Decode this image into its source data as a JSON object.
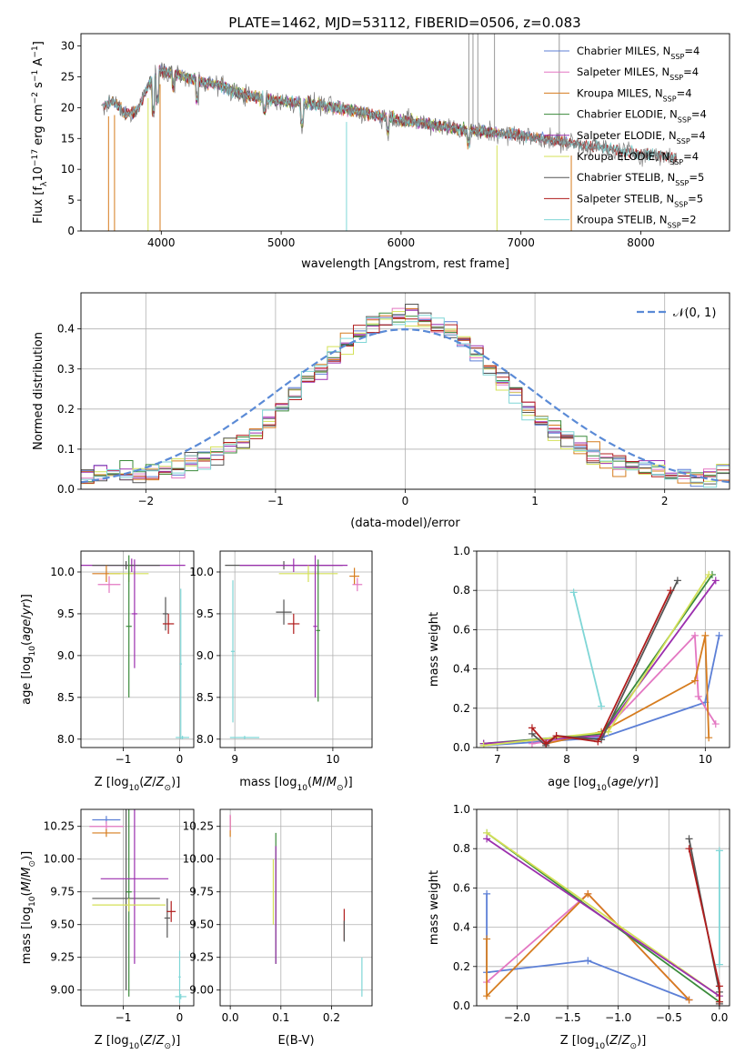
{
  "figure": {
    "title": "PLATE=1462, MJD=53112, FIBERID=0506, z=0.083"
  },
  "chart_data": [
    {
      "id": "spectrum",
      "type": "line",
      "xlabel": "wavelength [Angstrom, rest frame]",
      "ylabel": "Flux [f_λ 10^-17 erg cm^-2 s^-1 A^-1]",
      "xlim": [
        3330,
        8740
      ],
      "ylim": [
        0,
        32
      ],
      "xticks": [
        4000,
        5000,
        6000,
        7000,
        8000
      ],
      "yticks": [
        0,
        5,
        10,
        15,
        20,
        25,
        30
      ],
      "legend": "top-right",
      "data_color": "#7f7f7f",
      "continuum": [
        [
          3500,
          20
        ],
        [
          3600,
          21
        ],
        [
          3700,
          19
        ],
        [
          3800,
          19.5
        ],
        [
          3900,
          24
        ],
        [
          4000,
          26
        ],
        [
          4100,
          25.5
        ],
        [
          4300,
          24.5
        ],
        [
          4500,
          23.5
        ],
        [
          4700,
          22
        ],
        [
          5000,
          21
        ],
        [
          5300,
          20.5
        ],
        [
          5600,
          19.5
        ],
        [
          6000,
          18
        ],
        [
          6500,
          16.5
        ],
        [
          7000,
          15.5
        ],
        [
          7500,
          14
        ],
        [
          8000,
          12.5
        ],
        [
          8300,
          12
        ]
      ],
      "series": [
        {
          "name": "Chabrier MILES, N_SSP=4",
          "color": "#5c7fd6",
          "range": [
            3520,
            7400
          ]
        },
        {
          "name": "Salpeter MILES, N_SSP=4",
          "color": "#e377c2",
          "range": [
            3520,
            7400
          ]
        },
        {
          "name": "Kroupa MILES, N_SSP=4",
          "color": "#d67c1e",
          "range": [
            3520,
            7400
          ]
        },
        {
          "name": "Chabrier ELODIE, N_SSP=4",
          "color": "#3a8a3a",
          "range": [
            3900,
            6800
          ]
        },
        {
          "name": "Salpeter ELODIE, N_SSP=4",
          "color": "#9b2fae",
          "range": [
            3900,
            6800
          ]
        },
        {
          "name": "Kroupa ELODIE, N_SSP=4",
          "color": "#d4e157",
          "range": [
            3900,
            6800
          ]
        },
        {
          "name": "Chabrier STELIB, N_SSP=5",
          "color": "#555555",
          "range": [
            3520,
            8300
          ]
        },
        {
          "name": "Salpeter STELIB, N_SSP=5",
          "color": "#b01c1c",
          "range": [
            3520,
            8300
          ]
        },
        {
          "name": "Kroupa STELIB, N_SSP=2",
          "color": "#7fd6d6",
          "range": [
            3520,
            8300
          ]
        }
      ]
    },
    {
      "id": "residuals",
      "type": "line",
      "xlabel": "(data-model)/error",
      "ylabel": "Normed distribution",
      "xlim": [
        -2.5,
        2.5
      ],
      "ylim": [
        0,
        0.49
      ],
      "xticks": [
        -2,
        -1,
        0,
        1,
        2
      ],
      "yticks": [
        0.0,
        0.1,
        0.2,
        0.3,
        0.4
      ],
      "legend": "top-right",
      "normal_label": "𝒩(0, 1)",
      "normal_color": "#5a8ad6",
      "bin_width": 0.1,
      "grid": true
    },
    {
      "id": "z-age",
      "type": "scatter",
      "xlabel": "Z [log10(Z/Z⊙)]",
      "ylabel": "age  [log10(age/yr)]",
      "xlim": [
        -1.75,
        0.25
      ],
      "ylim": [
        7.9,
        10.25
      ],
      "xticks": [
        -1,
        0
      ],
      "yticks": [
        8.0,
        8.5,
        9.0,
        9.5,
        10.0
      ],
      "points": [
        {
          "x": -0.85,
          "y": 10.08,
          "xerr": 0.95,
          "yerr": 0.08,
          "color": "#9b2fae"
        },
        {
          "x": -0.95,
          "y": 10.08,
          "xerr": 0.6,
          "yerr": 0.05,
          "color": "#555555"
        },
        {
          "x": -1.3,
          "y": 9.98,
          "xerr": 0.25,
          "yerr": 0.1,
          "color": "#d67c1e"
        },
        {
          "x": -1.25,
          "y": 9.85,
          "xerr": 0.2,
          "yerr": 0.1,
          "color": "#e377c2"
        },
        {
          "x": -0.9,
          "y": 9.98,
          "xerr": 0.35,
          "yerr": 0.1,
          "color": "#d4e157"
        },
        {
          "x": -0.9,
          "y": 9.35,
          "xerr": 0.05,
          "yerr": 0.85,
          "color": "#3a8a3a"
        },
        {
          "x": -0.8,
          "y": 9.5,
          "xerr": 0.05,
          "yerr": 0.65,
          "color": "#9b2fae"
        },
        {
          "x": -0.25,
          "y": 9.5,
          "xerr": 0.05,
          "yerr": 0.2,
          "color": "#555555"
        },
        {
          "x": -0.2,
          "y": 9.38,
          "xerr": 0.1,
          "yerr": 0.12,
          "color": "#b01c1c"
        },
        {
          "x": 0.02,
          "y": 8.9,
          "xerr": 0.02,
          "yerr": 0.9,
          "color": "#7fd6d6"
        },
        {
          "x": 0.05,
          "y": 8.02,
          "xerr": 0.12,
          "yerr": 0.02,
          "color": "#7fd6d6"
        }
      ]
    },
    {
      "id": "mass-age",
      "type": "scatter",
      "xlabel": "mass [log10(M/M⊙)]",
      "ylabel": "",
      "xlim": [
        8.85,
        10.4
      ],
      "ylim": [
        7.9,
        10.25
      ],
      "xticks": [
        9,
        10
      ],
      "yticks": [
        8.0,
        8.5,
        9.0,
        9.5,
        10.0
      ],
      "points": [
        {
          "x": 9.5,
          "y": 10.08,
          "xerr": 0.6,
          "yerr": 0.05,
          "color": "#555555"
        },
        {
          "x": 9.6,
          "y": 10.08,
          "xerr": 0.55,
          "yerr": 0.08,
          "color": "#9b2fae"
        },
        {
          "x": 9.75,
          "y": 9.98,
          "xerr": 0.3,
          "yerr": 0.1,
          "color": "#d4e157"
        },
        {
          "x": 10.22,
          "y": 9.95,
          "xerr": 0.05,
          "yerr": 0.1,
          "color": "#d67c1e"
        },
        {
          "x": 10.25,
          "y": 9.85,
          "xerr": 0.05,
          "yerr": 0.08,
          "color": "#e377c2"
        },
        {
          "x": 9.85,
          "y": 9.3,
          "xerr": 0.02,
          "yerr": 0.85,
          "color": "#3a8a3a"
        },
        {
          "x": 9.82,
          "y": 9.35,
          "xerr": 0.02,
          "yerr": 0.85,
          "color": "#9b2fae"
        },
        {
          "x": 9.5,
          "y": 9.52,
          "xerr": 0.08,
          "yerr": 0.15,
          "color": "#555555"
        },
        {
          "x": 9.6,
          "y": 9.38,
          "xerr": 0.06,
          "yerr": 0.12,
          "color": "#b01c1c"
        },
        {
          "x": 8.98,
          "y": 9.05,
          "xerr": 0.02,
          "yerr": 0.85,
          "color": "#7fd6d6"
        },
        {
          "x": 9.1,
          "y": 8.02,
          "xerr": 0.15,
          "yerr": 0.02,
          "color": "#7fd6d6"
        }
      ]
    },
    {
      "id": "age-weight",
      "type": "line",
      "xlabel": "age  [log10(age/yr)]",
      "ylabel": "mass weight",
      "xlim": [
        6.7,
        10.35
      ],
      "ylim": [
        0,
        1.0
      ],
      "xticks": [
        7,
        8,
        9,
        10
      ],
      "yticks": [
        0.0,
        0.2,
        0.4,
        0.6,
        0.8,
        1.0
      ],
      "series": [
        {
          "color": "#5c7fd6",
          "x": [
            6.8,
            8.5,
            10.0,
            10.2
          ],
          "y": [
            0.01,
            0.05,
            0.23,
            0.57
          ]
        },
        {
          "color": "#e377c2",
          "x": [
            7.5,
            8.5,
            9.85,
            9.9,
            10.15
          ],
          "y": [
            0.02,
            0.07,
            0.57,
            0.26,
            0.12
          ]
        },
        {
          "color": "#d67c1e",
          "x": [
            7.7,
            8.5,
            9.85,
            10.0,
            10.05
          ],
          "y": [
            0.02,
            0.08,
            0.34,
            0.57,
            0.05
          ]
        },
        {
          "color": "#3a8a3a",
          "x": [
            6.8,
            8.5,
            10.1
          ],
          "y": [
            0.02,
            0.07,
            0.88
          ]
        },
        {
          "color": "#9b2fae",
          "x": [
            6.8,
            8.5,
            10.15
          ],
          "y": [
            0.02,
            0.06,
            0.85
          ]
        },
        {
          "color": "#d4e157",
          "x": [
            6.8,
            8.6,
            10.05
          ],
          "y": [
            0.01,
            0.08,
            0.88
          ]
        },
        {
          "color": "#555555",
          "x": [
            7.5,
            7.7,
            7.85,
            8.5,
            9.6
          ],
          "y": [
            0.07,
            0.01,
            0.06,
            0.04,
            0.85
          ]
        },
        {
          "color": "#b01c1c",
          "x": [
            7.5,
            7.7,
            7.85,
            8.45,
            9.5
          ],
          "y": [
            0.1,
            0.02,
            0.06,
            0.03,
            0.8
          ]
        },
        {
          "color": "#7fd6d6",
          "x": [
            8.1,
            8.5
          ],
          "y": [
            0.79,
            0.21
          ]
        }
      ]
    },
    {
      "id": "z-mass",
      "type": "scatter",
      "xlabel": "Z [log10(Z/Z⊙)]",
      "ylabel": "mass [log10(M/M⊙)]",
      "xlim": [
        -1.75,
        0.25
      ],
      "ylim": [
        8.88,
        10.38
      ],
      "xticks": [
        -1,
        0
      ],
      "yticks": [
        9.0,
        9.25,
        9.5,
        9.75,
        10.0,
        10.25
      ],
      "points": [
        {
          "x": -1.3,
          "y": 10.3,
          "xerr": 0.25,
          "yerr": 0.03,
          "color": "#5c7fd6"
        },
        {
          "x": -1.3,
          "y": 10.25,
          "xerr": 0.3,
          "yerr": 0.04,
          "color": "#e377c2"
        },
        {
          "x": -1.3,
          "y": 10.2,
          "xerr": 0.25,
          "yerr": 0.03,
          "color": "#d67c1e"
        },
        {
          "x": -0.95,
          "y": 9.7,
          "xerr": 0.6,
          "yerr": 0.7,
          "color": "#555555"
        },
        {
          "x": -0.9,
          "y": 9.75,
          "xerr": 0.05,
          "yerr": 0.8,
          "color": "#3a8a3a"
        },
        {
          "x": -0.8,
          "y": 9.85,
          "xerr": 0.6,
          "yerr": 0.65,
          "color": "#9b2fae"
        },
        {
          "x": -0.9,
          "y": 9.65,
          "xerr": 0.65,
          "yerr": 0.05,
          "color": "#d4e157"
        },
        {
          "x": -0.22,
          "y": 9.55,
          "xerr": 0.05,
          "yerr": 0.15,
          "color": "#555555"
        },
        {
          "x": -0.15,
          "y": 9.6,
          "xerr": 0.08,
          "yerr": 0.08,
          "color": "#b01c1c"
        },
        {
          "x": 0.0,
          "y": 9.1,
          "xerr": 0.02,
          "yerr": 0.2,
          "color": "#7fd6d6"
        },
        {
          "x": 0.02,
          "y": 8.95,
          "xerr": 0.1,
          "yerr": 0.02,
          "color": "#7fd6d6"
        }
      ]
    },
    {
      "id": "ebv-mass",
      "type": "scatter",
      "xlabel": "E(B-V)",
      "ylabel": "",
      "xlim": [
        -0.02,
        0.28
      ],
      "ylim": [
        8.88,
        10.38
      ],
      "xticks": [
        0.0,
        0.1,
        0.2
      ],
      "yticks": [
        9.0,
        9.25,
        9.5,
        9.75,
        10.0,
        10.25
      ],
      "points": [
        {
          "x": 0.0,
          "y": 10.25,
          "xerr": 0.0,
          "yerr": 0.08,
          "color": "#d67c1e"
        },
        {
          "x": 0.0,
          "y": 10.28,
          "xerr": 0.0,
          "yerr": 0.06,
          "color": "#e377c2"
        },
        {
          "x": 0.09,
          "y": 9.7,
          "xerr": 0.0,
          "yerr": 0.5,
          "color": "#3a8a3a"
        },
        {
          "x": 0.09,
          "y": 9.65,
          "xerr": 0.0,
          "yerr": 0.45,
          "color": "#9b2fae"
        },
        {
          "x": 0.085,
          "y": 9.75,
          "xerr": 0.0,
          "yerr": 0.25,
          "color": "#d4e157"
        },
        {
          "x": 0.225,
          "y": 9.5,
          "xerr": 0.0,
          "yerr": 0.12,
          "color": "#b01c1c"
        },
        {
          "x": 0.225,
          "y": 9.45,
          "xerr": 0.0,
          "yerr": 0.08,
          "color": "#555555"
        },
        {
          "x": 0.26,
          "y": 9.1,
          "xerr": 0.0,
          "yerr": 0.15,
          "color": "#7fd6d6"
        }
      ]
    },
    {
      "id": "z-weight",
      "type": "line",
      "xlabel": "Z [log10(Z/Z⊙)]",
      "ylabel": "mass weight",
      "xlim": [
        -2.4,
        0.1
      ],
      "ylim": [
        0,
        1.0
      ],
      "xticks": [
        -2.0,
        -1.5,
        -1.0,
        -0.5,
        0.0
      ],
      "yticks": [
        0.0,
        0.2,
        0.4,
        0.6,
        0.8,
        1.0
      ],
      "series": [
        {
          "color": "#5c7fd6",
          "x": [
            -2.3,
            -2.3,
            -1.3,
            -0.3
          ],
          "y": [
            0.57,
            0.17,
            0.23,
            0.03
          ]
        },
        {
          "color": "#e377c2",
          "x": [
            -2.3,
            -1.3,
            -0.3
          ],
          "y": [
            0.12,
            0.57,
            0.03
          ]
        },
        {
          "color": "#d67c1e",
          "x": [
            -2.3,
            -2.3,
            -1.3,
            -0.3
          ],
          "y": [
            0.34,
            0.05,
            0.57,
            0.03
          ]
        },
        {
          "color": "#3a8a3a",
          "x": [
            -2.3,
            0.0
          ],
          "y": [
            0.88,
            0.02
          ]
        },
        {
          "color": "#d4e157",
          "x": [
            -2.3,
            0.0
          ],
          "y": [
            0.88,
            0.05
          ]
        },
        {
          "color": "#9b2fae",
          "x": [
            -2.3,
            0.0
          ],
          "y": [
            0.85,
            0.05
          ]
        },
        {
          "color": "#555555",
          "x": [
            -0.3,
            0.0,
            0.0
          ],
          "y": [
            0.85,
            0.07,
            0.01
          ]
        },
        {
          "color": "#b01c1c",
          "x": [
            -0.3,
            0.0,
            0.0
          ],
          "y": [
            0.8,
            0.1,
            0.02
          ]
        },
        {
          "color": "#7fd6d6",
          "x": [
            0.0,
            0.0
          ],
          "y": [
            0.79,
            0.21
          ]
        }
      ]
    }
  ]
}
